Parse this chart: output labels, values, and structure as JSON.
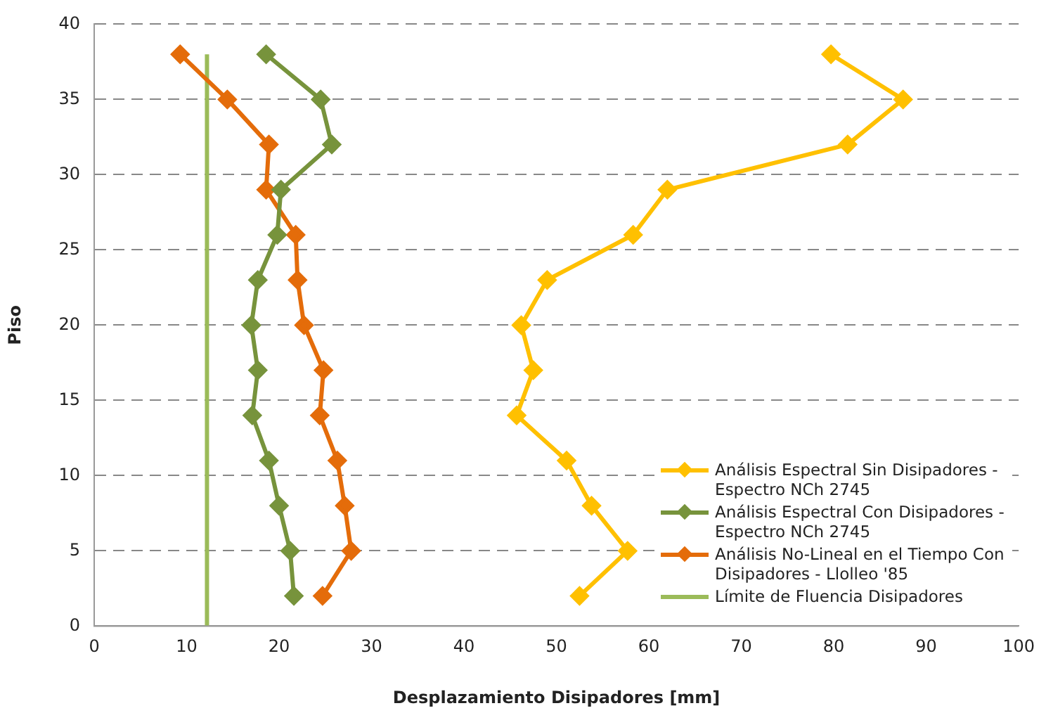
{
  "chart_data": {
    "type": "line",
    "xlabel": "Desplazamiento Disipadores [mm]",
    "ylabel": "Piso",
    "xlim": [
      0,
      100
    ],
    "xticks": [
      0,
      10,
      20,
      30,
      40,
      50,
      60,
      70,
      80,
      90,
      100
    ],
    "ylim": [
      0,
      40
    ],
    "yticks": [
      0,
      5,
      10,
      15,
      20,
      25,
      30,
      35,
      40
    ],
    "grid": "y",
    "legend": "bottom right",
    "marker": "diamond",
    "line_style": "solid",
    "series": [
      {
        "name": "Análisis Espectral Sin Disipadores - Espectro NCh 2745",
        "color": "#ffc000",
        "x": [
          79.7,
          87.5,
          81.5,
          62,
          58.3,
          49,
          46.2,
          47.5,
          45.7,
          51.1,
          53.8,
          57.7,
          52.5
        ],
        "values": [
          38,
          35,
          32,
          29,
          26,
          23,
          20,
          17,
          14,
          11,
          8,
          5,
          2
        ]
      },
      {
        "name": "Análisis Espectral Con Disipadores - Espectro NCh 2745",
        "color": "#77933c",
        "x": [
          18.6,
          24.5,
          25.7,
          20.2,
          19.8,
          17.7,
          17,
          17.7,
          17.1,
          18.9,
          20,
          21.2,
          21.6
        ],
        "values": [
          38,
          35,
          32,
          29,
          26,
          23,
          20,
          17,
          14,
          11,
          8,
          5,
          2
        ]
      },
      {
        "name": "Análisis No-Lineal en el Tiempo Con Disipadores - Llolleo '85",
        "color": "#e46c0a",
        "x": [
          9.3,
          14.4,
          18.9,
          18.6,
          21.8,
          22,
          22.7,
          24.8,
          24.4,
          26.3,
          27.1,
          27.8,
          24.7
        ],
        "values": [
          38,
          35,
          32,
          29,
          26,
          23,
          20,
          17,
          14,
          11,
          8,
          5,
          2
        ]
      },
      {
        "name": "Límite de Fluencia Disipadores",
        "color": "#9bbb59",
        "marker": "none",
        "x": [
          12.2,
          12.2
        ],
        "values": [
          0,
          38
        ]
      }
    ]
  }
}
